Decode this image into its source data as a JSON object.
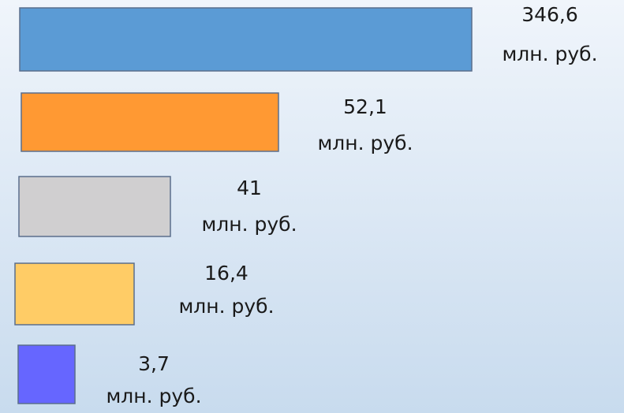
{
  "items": [
    {
      "value": "346,6",
      "unit": "млн. руб.",
      "color": "#5b9bd5"
    },
    {
      "value": "52,1",
      "unit": "млн. руб.",
      "color": "#ff9933"
    },
    {
      "value": "41",
      "unit": "млн. руб.",
      "color": "#d0cfd0"
    },
    {
      "value": "16,4",
      "unit": "млн. руб.",
      "color": "#ffcc66"
    },
    {
      "value": "3,7",
      "unit": "млн. руб.",
      "color": "#6666ff"
    }
  ]
}
